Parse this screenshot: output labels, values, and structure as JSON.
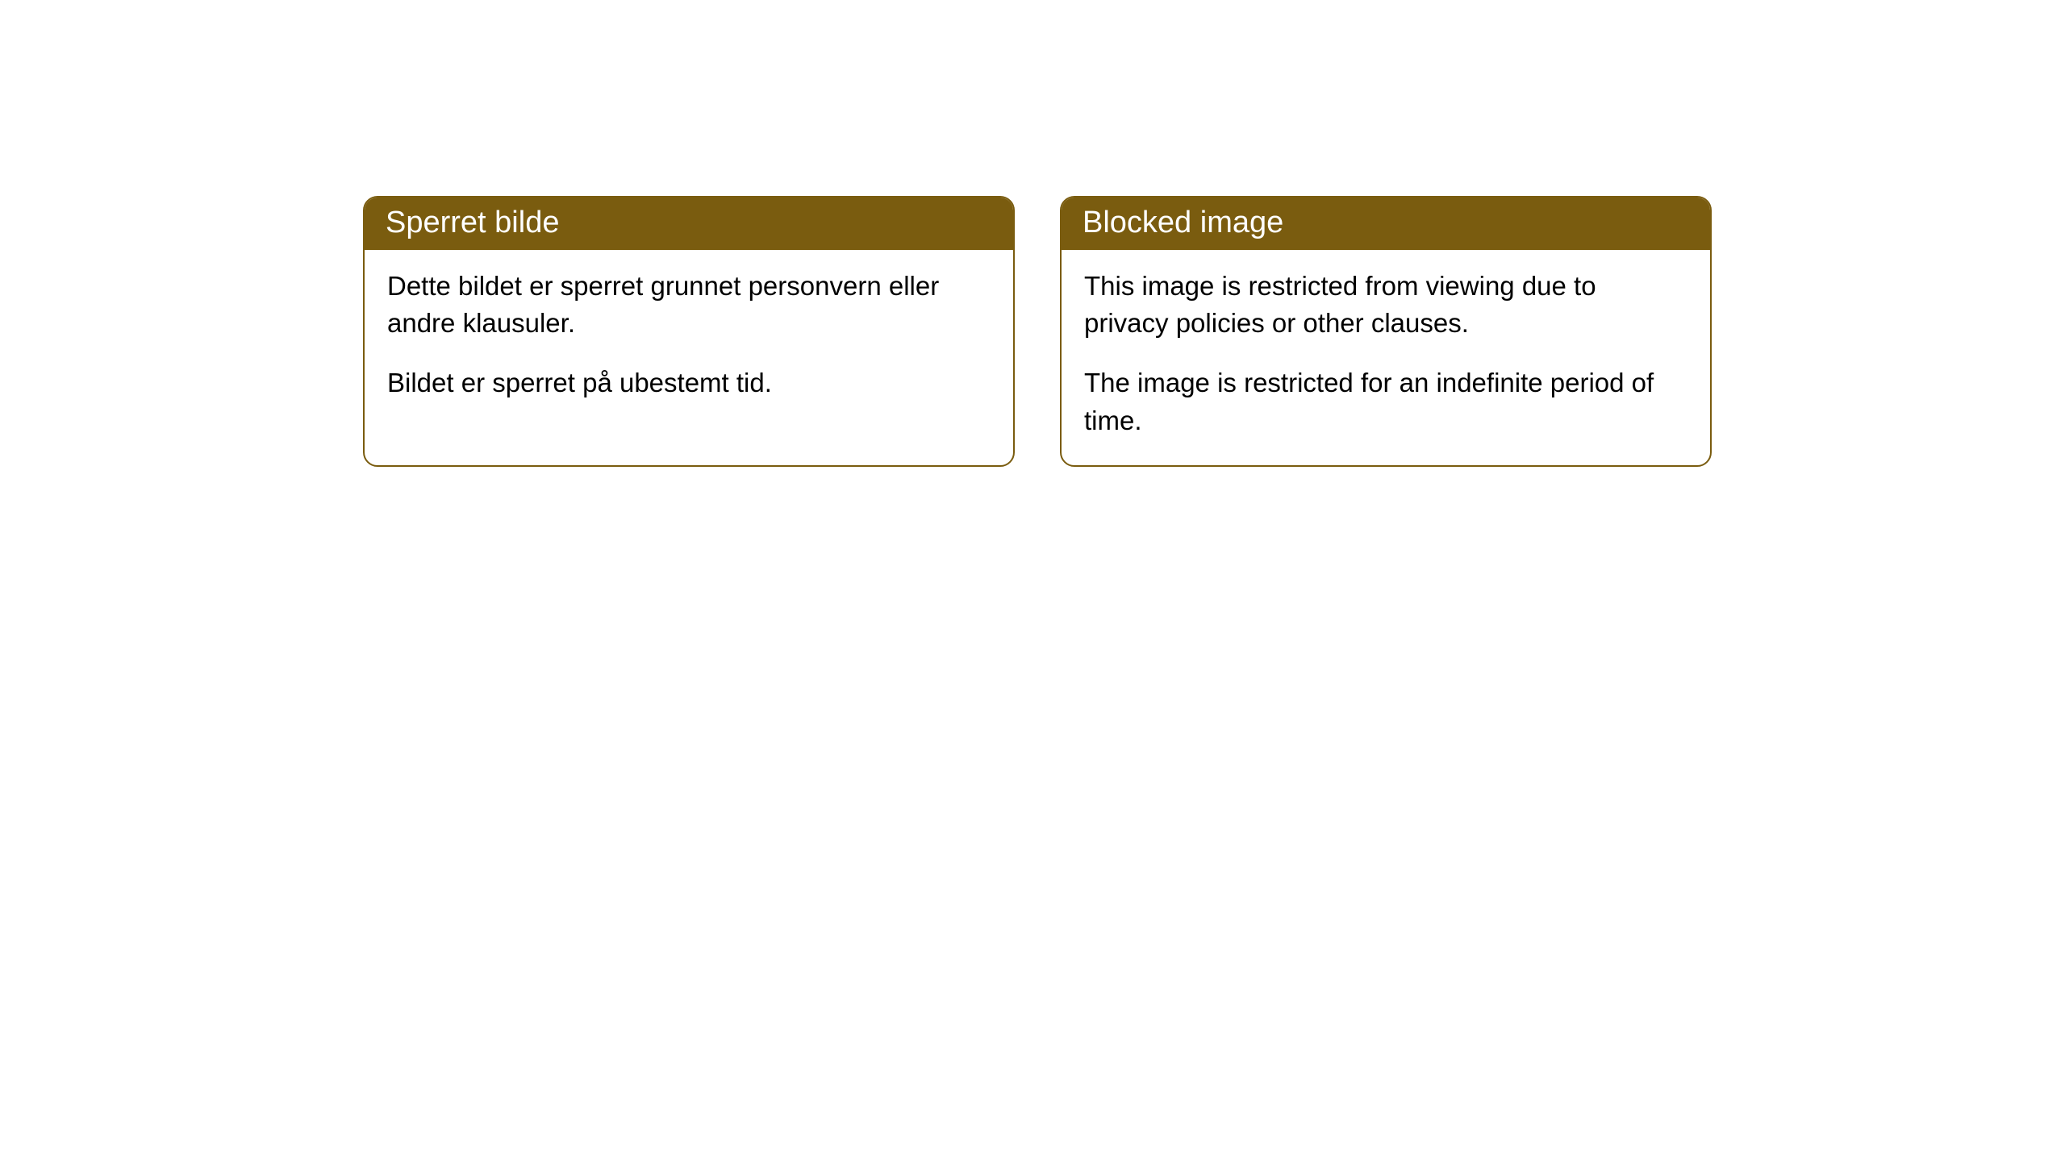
{
  "cards": [
    {
      "title": "Sperret bilde",
      "paragraph1": "Dette bildet er sperret grunnet personvern eller andre klausuler.",
      "paragraph2": "Bildet er sperret på ubestemt tid."
    },
    {
      "title": "Blocked image",
      "paragraph1": "This image is restricted from viewing due to privacy policies or other clauses.",
      "paragraph2": "The image is restricted for an indefinite period of time."
    }
  ],
  "styling": {
    "header_background_color": "#7a5c0f",
    "header_text_color": "#ffffff",
    "border_color": "#7a5c0f",
    "card_background_color": "#ffffff",
    "body_text_color": "#000000",
    "page_background_color": "#ffffff",
    "border_radius": 18,
    "header_fontsize": 38,
    "body_fontsize": 33
  }
}
